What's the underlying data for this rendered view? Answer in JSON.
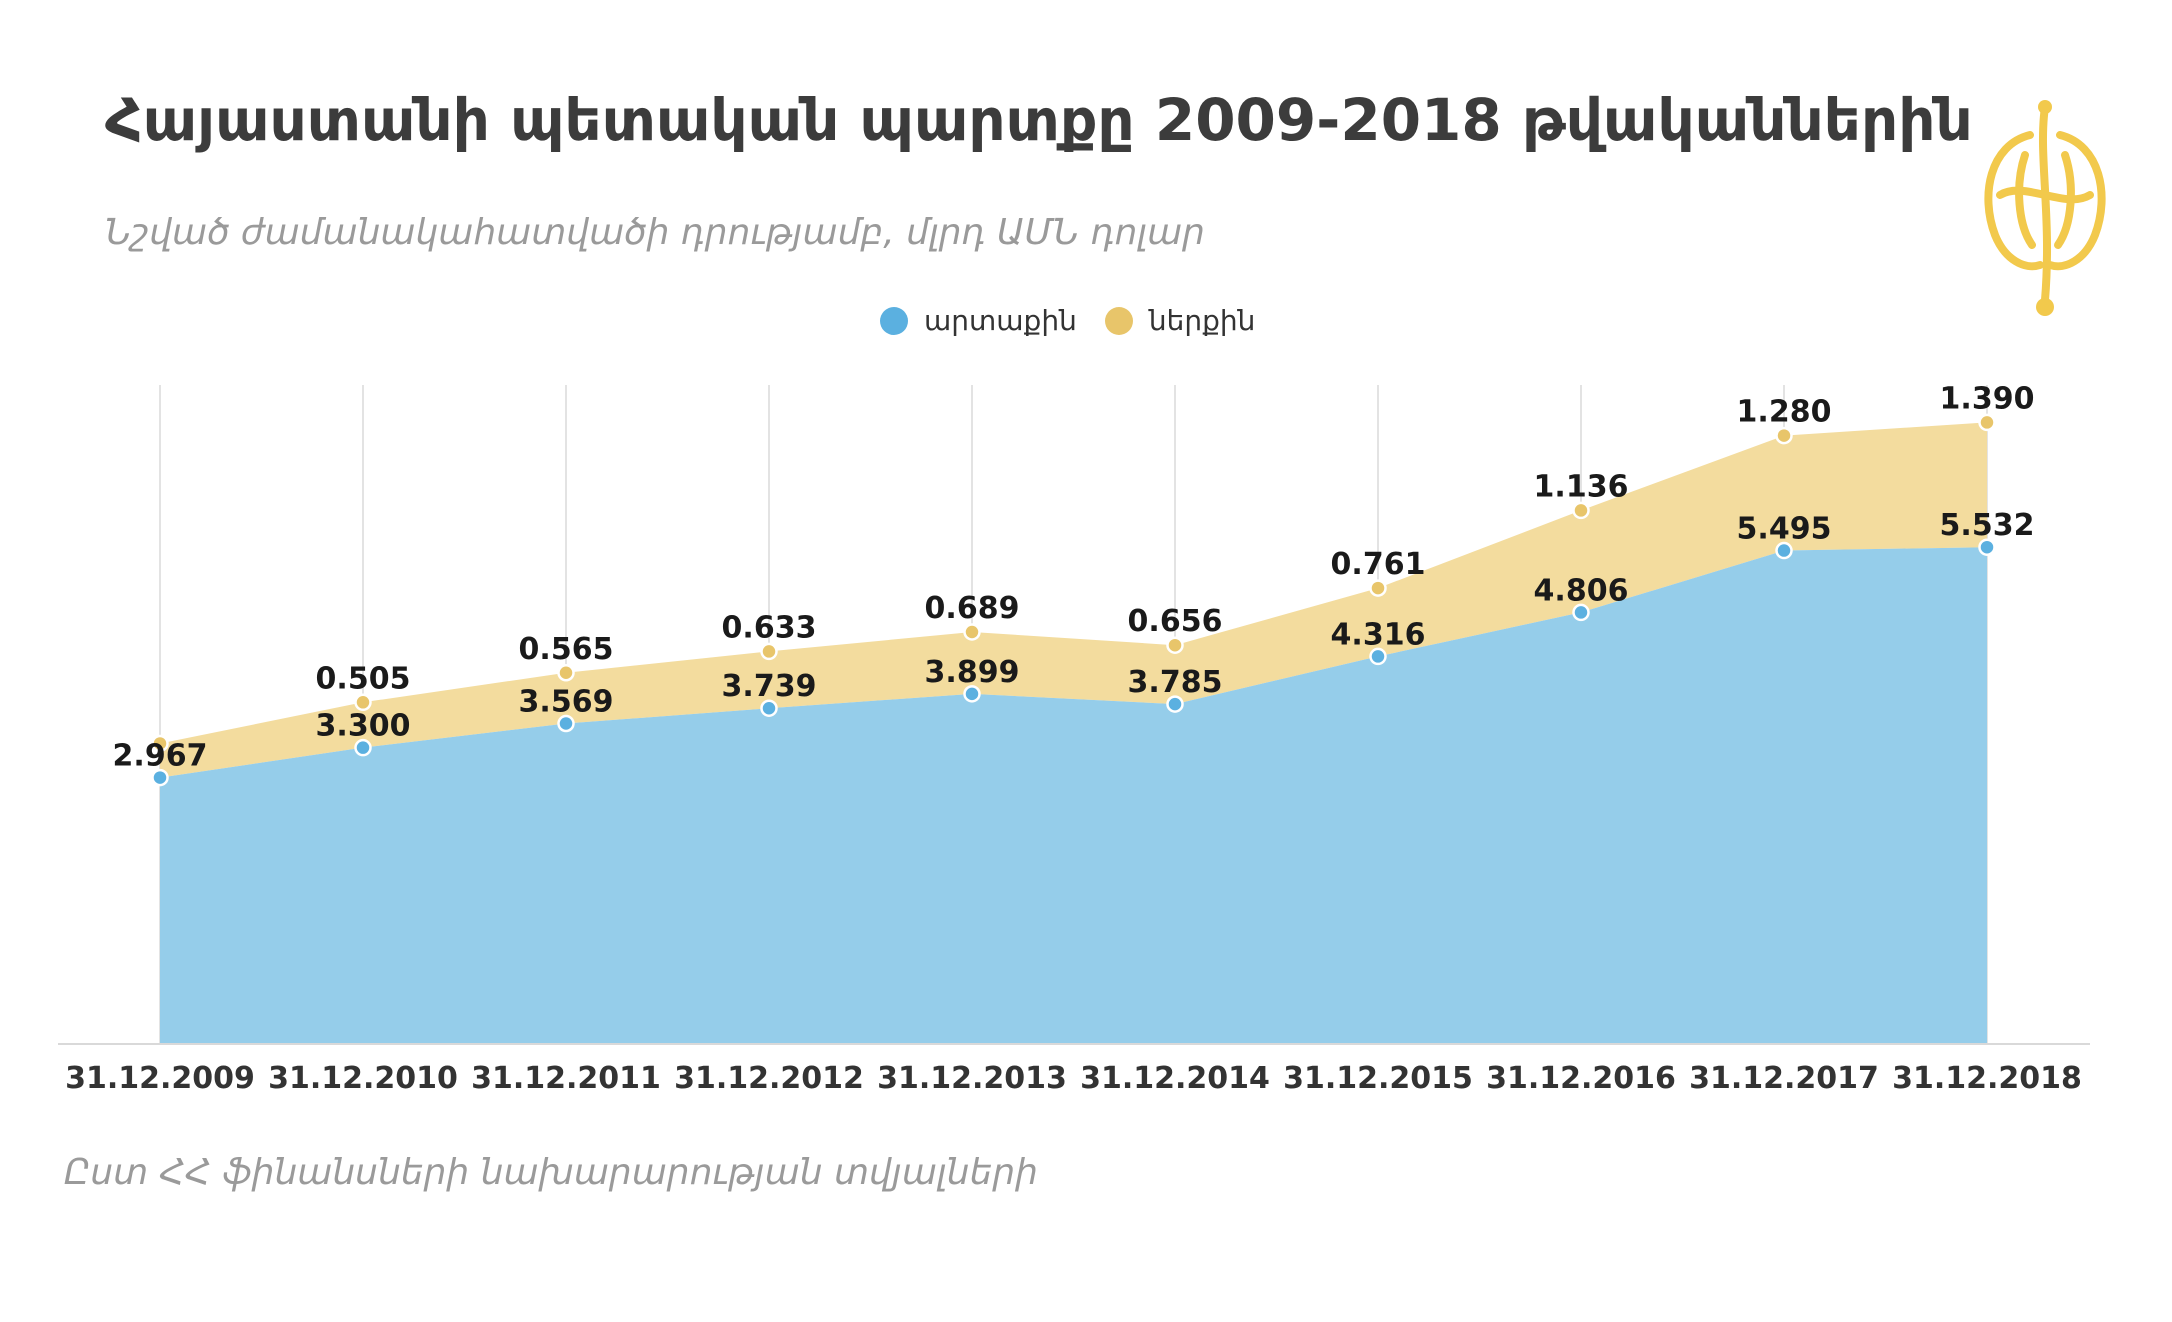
{
  "title": "Հայաստանի պետական պարտքը  2009-2018 թվականներին",
  "subtitle": "Նշված ժամանակահատվածի դրությամբ, մլրդ ԱՄՆ դոլար",
  "source": "Ըստ ՀՀ ֆինանսների նախարարության տվյալների",
  "logo": {
    "icon": "armenian-ornament-logo",
    "color": "#f2c94c"
  },
  "colors": {
    "external_fill": "#95cdea",
    "external_point": "#5bb0e0",
    "internal_fill": "#f3dc9e",
    "internal_point": "#e8c56a",
    "grid": "#e3e3e3",
    "axis": "#d9d9d9",
    "label": "#1a1a1a",
    "tick": "#333333"
  },
  "chart_data": {
    "type": "area",
    "stacked": true,
    "categories": [
      "31.12.2009",
      "31.12.2010",
      "31.12.2011",
      "31.12.2012",
      "31.12.2013",
      "31.12.2014",
      "31.12.2015",
      "31.12.2016",
      "31.12.2017",
      "31.12.2018"
    ],
    "series": [
      {
        "name": "արտաքին",
        "values": [
          2.967,
          3.3,
          3.569,
          3.739,
          3.899,
          3.785,
          4.316,
          4.806,
          5.495,
          5.532
        ],
        "labels": [
          "2.967",
          "3.300",
          "3.569",
          "3.739",
          "3.899",
          "3.785",
          "4.316",
          "4.806",
          "5.495",
          "5.532"
        ]
      },
      {
        "name": "ներքին",
        "values": [
          0.38,
          0.505,
          0.565,
          0.633,
          0.689,
          0.656,
          0.761,
          1.136,
          1.28,
          1.39
        ],
        "labels": [
          "",
          "0.505",
          "0.565",
          "0.633",
          "0.689",
          "0.656",
          "0.761",
          "1.136",
          "1.280",
          "1.390"
        ]
      }
    ],
    "ylim": [
      0,
      7
    ],
    "grid": "vertical",
    "legend": "top-center",
    "xlabel": "",
    "ylabel": ""
  }
}
